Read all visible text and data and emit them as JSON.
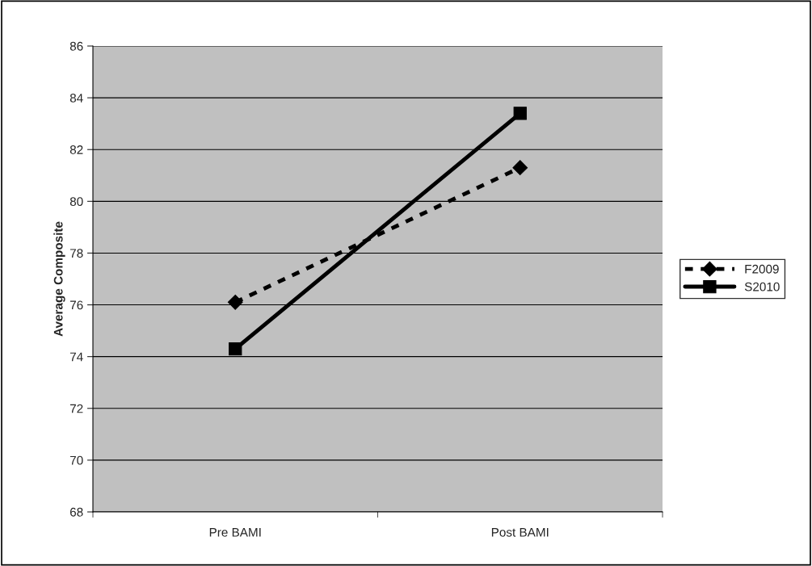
{
  "chart_data": {
    "type": "line",
    "ylabel": "Average Composite",
    "categories": [
      "Pre BAMI",
      "Post BAMI"
    ],
    "series": [
      {
        "name": "F2009",
        "color": "#000000",
        "values": [
          76.1,
          81.3
        ],
        "marker": "diamond",
        "line_style": "dashed"
      },
      {
        "name": "S2010",
        "color": "#000000",
        "values": [
          74.3,
          83.4
        ],
        "marker": "square",
        "line_style": "solid"
      }
    ],
    "ylim": [
      68,
      86
    ],
    "yticks": [
      68,
      70,
      72,
      74,
      76,
      78,
      80,
      82,
      84,
      86
    ],
    "grid": "y",
    "legend": "right"
  }
}
